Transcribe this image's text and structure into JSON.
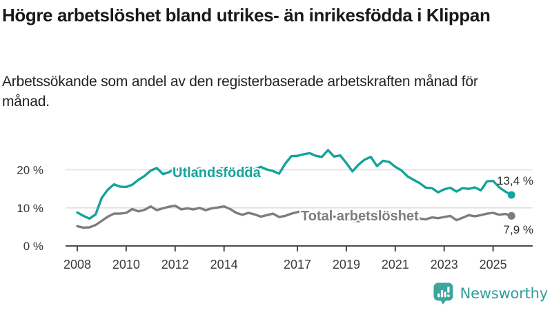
{
  "header": {
    "title": "Högre arbetslöshet bland utrikes- än inrikesfödda i Klippan",
    "subtitle": "Arbetssökande som andel av den registerbaserade arbetskraften månad för månad."
  },
  "chart_data": {
    "type": "line",
    "grid": true,
    "legend": "inline-labels",
    "ylim": [
      0,
      27
    ],
    "xlim": [
      2008,
      2025.75
    ],
    "x_ticks": [
      2008,
      2010,
      2012,
      2014,
      2017,
      2019,
      2021,
      2023,
      2025
    ],
    "y_ticks": [
      {
        "value": 0,
        "label": "0 %"
      },
      {
        "value": 10,
        "label": "10 %"
      },
      {
        "value": 20,
        "label": "20 %"
      }
    ],
    "x": [
      2008.0,
      2008.25,
      2008.5,
      2008.75,
      2009.0,
      2009.25,
      2009.5,
      2009.75,
      2010.0,
      2010.25,
      2010.5,
      2010.75,
      2011.0,
      2011.25,
      2011.5,
      2011.75,
      2012.0,
      2012.25,
      2012.5,
      2012.75,
      2013.0,
      2013.25,
      2013.5,
      2013.75,
      2014.0,
      2014.25,
      2014.5,
      2014.75,
      2015.0,
      2015.25,
      2015.5,
      2015.75,
      2016.0,
      2016.25,
      2016.5,
      2016.75,
      2017.0,
      2017.25,
      2017.5,
      2017.75,
      2018.0,
      2018.25,
      2018.5,
      2018.75,
      2019.0,
      2019.25,
      2019.5,
      2019.75,
      2020.0,
      2020.25,
      2020.5,
      2020.75,
      2021.0,
      2021.25,
      2021.5,
      2021.75,
      2022.0,
      2022.25,
      2022.5,
      2022.75,
      2023.0,
      2023.25,
      2023.5,
      2023.75,
      2024.0,
      2024.25,
      2024.5,
      2024.75,
      2025.0,
      2025.25,
      2025.5,
      2025.75
    ],
    "series": [
      {
        "name": "Utlandsfödda",
        "color": "#14a39a",
        "end_label": "13,4 %",
        "values": [
          8.8,
          7.9,
          7.2,
          8.3,
          12.6,
          14.8,
          16.2,
          15.6,
          15.5,
          16.1,
          17.4,
          18.4,
          19.8,
          20.5,
          18.9,
          19.4,
          20.3,
          19.7,
          19.4,
          20.0,
          20.4,
          19.7,
          19.5,
          20.1,
          20.5,
          19.9,
          19.6,
          20.2,
          20.6,
          20.1,
          20.8,
          20.1,
          19.7,
          19.0,
          21.6,
          23.6,
          23.7,
          24.1,
          24.4,
          23.7,
          23.4,
          25.2,
          23.5,
          23.8,
          21.8,
          19.6,
          21.4,
          22.7,
          23.4,
          21.0,
          22.4,
          22.1,
          20.8,
          19.9,
          18.3,
          17.4,
          16.5,
          15.3,
          15.2,
          14.1,
          14.9,
          15.3,
          14.3,
          15.2,
          15.0,
          15.4,
          14.6,
          17.0,
          17.1,
          15.4,
          14.3,
          13.4
        ]
      },
      {
        "name": "Total arbetslöshet",
        "color": "#7c7c81",
        "end_label": "7,9 %",
        "values": [
          5.2,
          4.8,
          4.9,
          5.5,
          6.6,
          7.7,
          8.5,
          8.5,
          8.7,
          9.7,
          9.1,
          9.5,
          10.4,
          9.4,
          9.9,
          10.3,
          10.6,
          9.6,
          9.9,
          9.6,
          10.0,
          9.4,
          9.9,
          10.1,
          10.4,
          9.7,
          8.7,
          8.2,
          8.7,
          8.3,
          7.7,
          8.1,
          8.5,
          7.6,
          7.9,
          8.5,
          8.9,
          9.3,
          8.8,
          8.5,
          8.3,
          8.0,
          7.7,
          7.4,
          7.0,
          6.6,
          6.5,
          6.9,
          7.3,
          8.8,
          9.0,
          8.6,
          8.3,
          8.0,
          7.7,
          7.4,
          7.2,
          7.0,
          7.5,
          7.3,
          7.6,
          7.9,
          6.8,
          7.4,
          8.1,
          7.8,
          8.1,
          8.5,
          8.7,
          8.2,
          8.4,
          7.9
        ]
      }
    ]
  },
  "colors": {
    "grid": "#d9d9d9",
    "axis": "#4a4a4a",
    "tick_text": "#3a3a3a",
    "value_text": "#2e2e2e",
    "title_text": "#191919",
    "body_text": "#222222"
  },
  "footer": {
    "brand": "Newsworthy",
    "logo_color": "#3ba59e",
    "text_color": "#2f9e97"
  }
}
